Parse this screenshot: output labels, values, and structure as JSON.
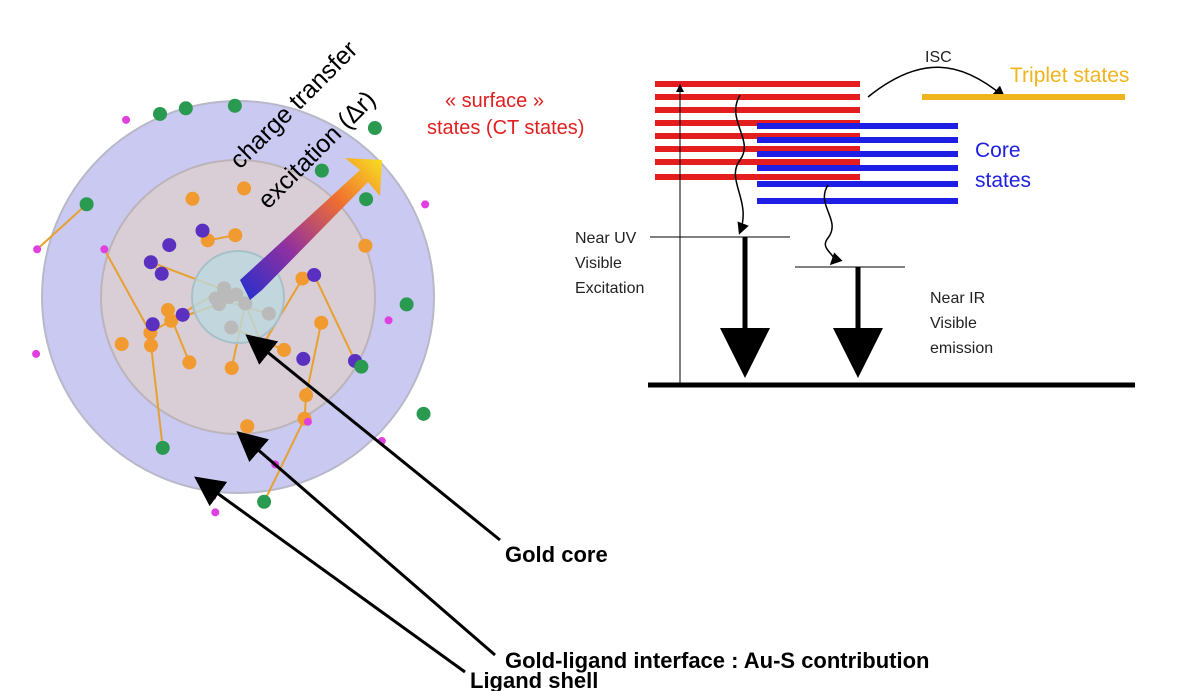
{
  "cluster": {
    "excitation_label": [
      "charge transfer",
      "excitation (Δr)"
    ]
  },
  "energy_diagram": {
    "surface_states": [
      "« surface »",
      "states (CT states)"
    ],
    "isc": "ISC",
    "triplet_states": "Triplet states",
    "core_states": [
      "Core",
      "states"
    ],
    "excitation_label": [
      "Near UV",
      "Visible",
      "Excitation"
    ],
    "emission_label": [
      "Near IR",
      "Visible",
      "emission"
    ]
  },
  "legend": {
    "gold_core": "Gold core",
    "interface": "Gold-ligand interface : Au-S contribution",
    "ligand_shell": "Ligand shell"
  }
}
